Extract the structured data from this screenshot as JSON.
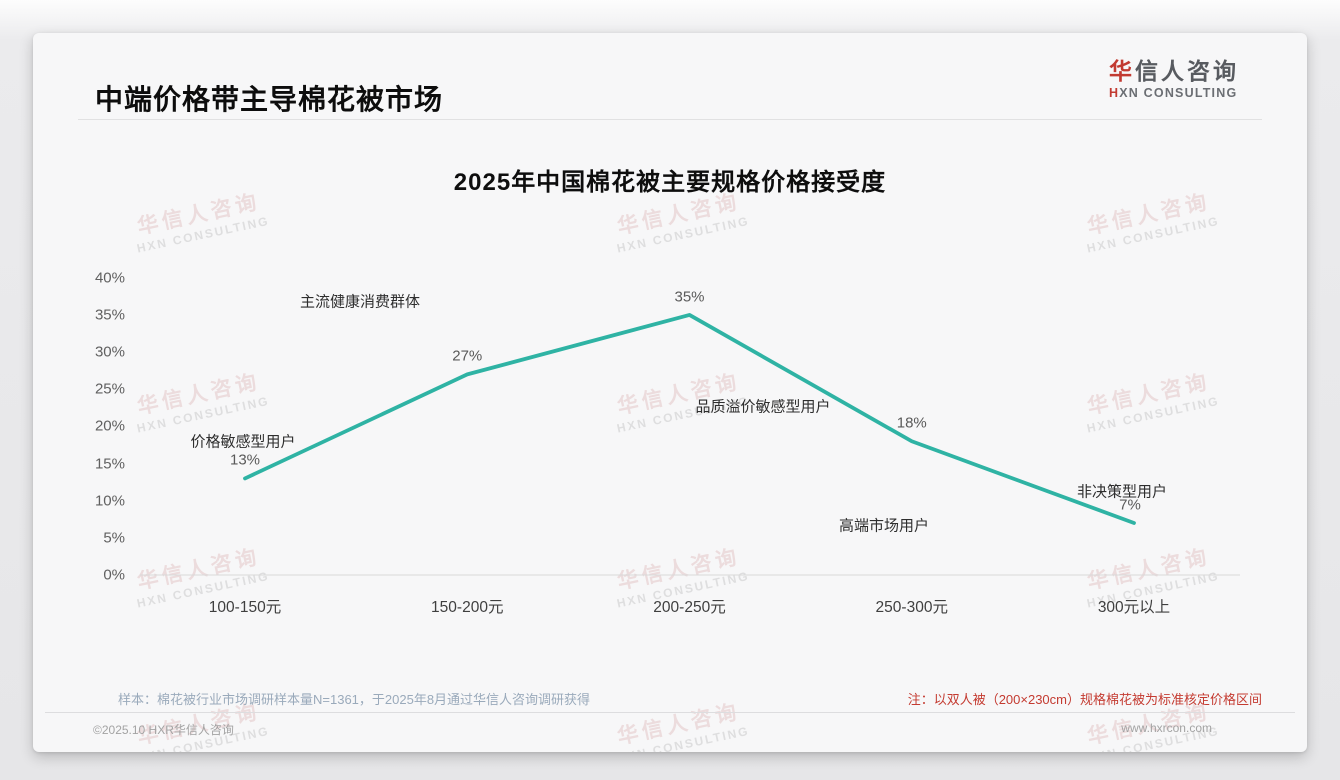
{
  "page": {
    "header": {
      "title": "中端价格带主导棉花被市场"
    },
    "logo": {
      "cn_first": "华",
      "cn_rest": "信人咨询",
      "en_first": "H",
      "en_rest": "XN CONSULTING"
    },
    "watermark": {
      "cn": "华信人咨询",
      "en": "HXN CONSULTING"
    },
    "footer": {
      "sample_note": "样本：棉花被行业市场调研样本量N=1361，于2025年8月通过华信人咨询调研获得",
      "spec_note": "注：以双人被（200×230cm）规格棉花被为标准核定价格区间",
      "copyright": "©2025.10 HXR华信人咨询",
      "website": "www.hxrcon.com"
    }
  },
  "chart_data": {
    "type": "line",
    "title": "2025年中国棉花被主要规格价格接受度",
    "categories": [
      "100-150元",
      "150-200元",
      "200-250元",
      "250-300元",
      "300元以上"
    ],
    "values": [
      13,
      27,
      35,
      18,
      7
    ],
    "value_labels": [
      "13%",
      "27%",
      "35%",
      "18%",
      "7%"
    ],
    "annotations": [
      "价格敏感型用户",
      "主流健康消费群体",
      "品质溢价敏感型用户",
      "高端市场用户",
      "非决策型用户"
    ],
    "y_ticks": [
      "40%",
      "35%",
      "30%",
      "25%",
      "20%",
      "15%",
      "10%",
      "5%",
      "0%"
    ],
    "xlabel": "",
    "ylabel": "",
    "ylim": [
      0,
      40
    ],
    "grid": false,
    "legend": false,
    "line_color": "#2fb3a4",
    "axis_color": "#d9d9d9"
  }
}
